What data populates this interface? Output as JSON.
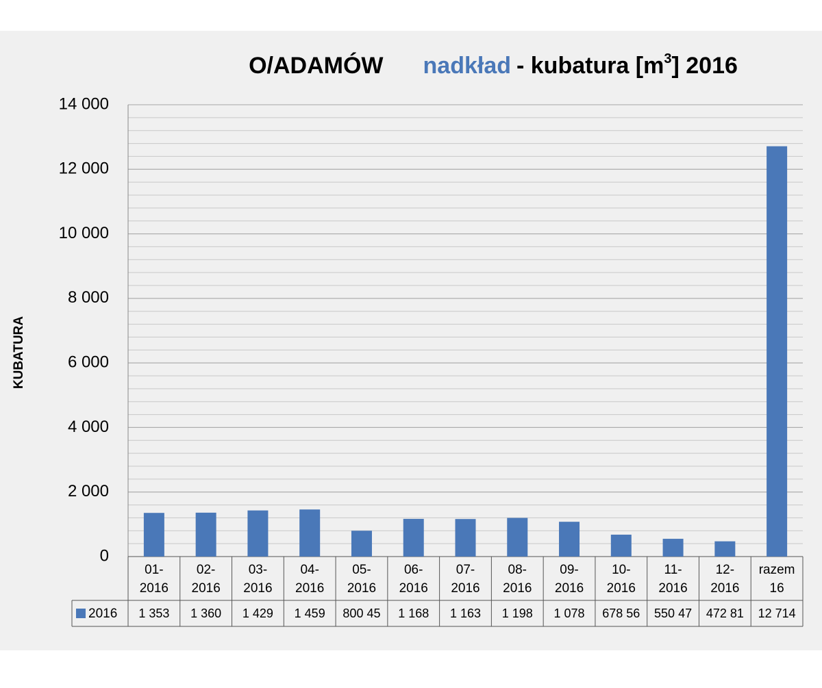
{
  "chart_data": {
    "type": "bar",
    "title": [
      "O/ADAMÓW",
      "nadkład",
      "- kubatura [m",
      "3",
      "]  2016"
    ],
    "y_label": "KUBATURA",
    "categories": [
      [
        "01-",
        "2016"
      ],
      [
        "02-",
        "2016"
      ],
      [
        "03-",
        "2016"
      ],
      [
        "04-",
        "2016"
      ],
      [
        "05-",
        "2016"
      ],
      [
        "06-",
        "2016"
      ],
      [
        "07-",
        "2016"
      ],
      [
        "08-",
        "2016"
      ],
      [
        "09-",
        "2016"
      ],
      [
        "10-",
        "2016"
      ],
      [
        "11-",
        "2016"
      ],
      [
        "12-",
        "2016"
      ],
      [
        "razem",
        "16"
      ]
    ],
    "series": [
      {
        "name": "2016",
        "color": "#4a78b8",
        "values": [
          1353,
          1360,
          1429,
          1459,
          800.45,
          1168,
          1163,
          1198,
          1078,
          678.56,
          550.47,
          472.81,
          12714
        ],
        "value_labels": [
          "1 353",
          "1 360",
          "1 429",
          "1 459",
          "800 45",
          "1 168",
          "1 163",
          "1 198",
          "1 078",
          "678 56",
          "550 47",
          "472 81",
          "12 714"
        ]
      }
    ],
    "ylim": [
      0,
      14000
    ],
    "yticks": [
      0,
      {
        "value": 2000,
        "label": "2 000"
      },
      {
        "value": 4000,
        "label": "4 000"
      },
      {
        "value": 6000,
        "label": "6 000"
      },
      {
        "value": 8000,
        "label": "8 000"
      },
      {
        "value": 10000,
        "label": "10 000"
      },
      {
        "value": 12000,
        "label": "12 000"
      },
      {
        "value": 14000,
        "label": "14 000"
      }
    ],
    "grid": true,
    "minor_grid_step": 400,
    "title_highlight_color": "#4a78b8"
  }
}
